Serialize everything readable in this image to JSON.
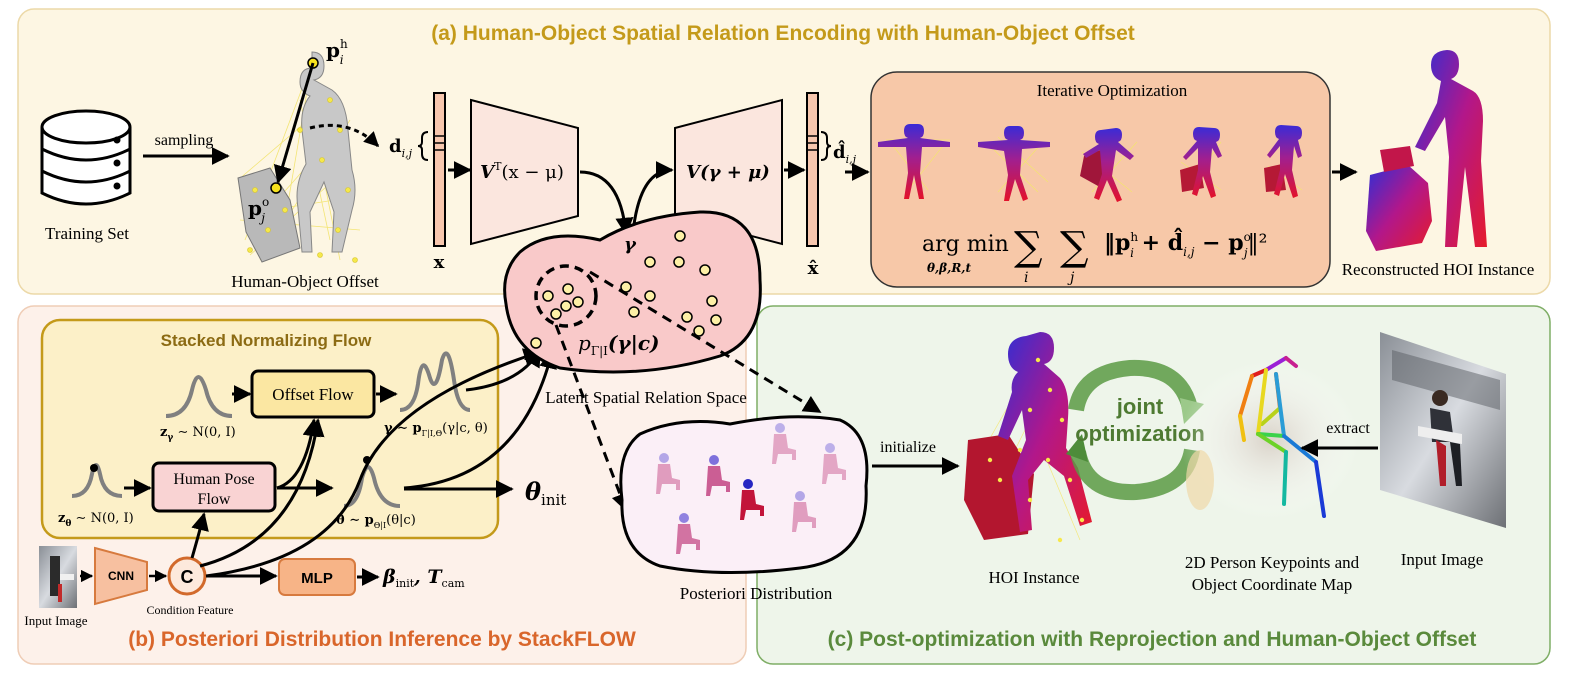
{
  "panel_a": {
    "title": "(a) Human-Object Spatial Relation Encoding with Human-Object Offset",
    "training_set": "Training Set",
    "sampling": "sampling",
    "human_object_offset": "Human-Object Offset",
    "p_h": "p",
    "p_h_sup": "h",
    "p_h_sub": "i",
    "p_o": "p",
    "p_o_sup": "o",
    "p_o_sub": "j",
    "d_ij": "d",
    "d_ij_sub": "i,j",
    "x_label": "x",
    "encoder_label": "V",
    "encoder_sup": "T",
    "encoder_rest": "(x − μ)",
    "decoder_label": "V(γ + μ)",
    "gamma": "γ",
    "dhat_ij": "d̂",
    "dhat_ij_sub": "i,j",
    "xhat_label": "x̂",
    "iterative_optimization": "Iterative  Optimization",
    "argmin": "arg min",
    "argmin_sub": "θ,β,R,t",
    "sum_i": "i",
    "sum_j": "j",
    "objective": "‖p",
    "objective_sup_h": "h",
    "objective_mid": " + d̂",
    "objective_sub_ij": "i,j",
    "objective_minus": " − p",
    "objective_sup_o": "o",
    "objective_sub_j": "j",
    "objective_end": "‖²",
    "objective_sub_i": "i",
    "reconstructed": "Reconstructed HOI Instance"
  },
  "latent": {
    "density": "p",
    "density_sub": "Γ|I",
    "density_arg": "(γ|c)",
    "label": "Latent Spatial Relation Space",
    "posteriori": "Posteriori Distribution"
  },
  "panel_b": {
    "title": "(b) Posteriori Distribution Inference by StackFLOW",
    "stacked_flow": "Stacked Normalizing Flow",
    "offset_flow": "Offset Flow",
    "human_pose_flow_1": "Human Pose",
    "human_pose_flow_2": "Flow",
    "z_gamma": "z",
    "z_gamma_sub": "γ",
    "z_gamma_rest": " ∼ N(0, I)",
    "z_theta": "z",
    "z_theta_sub": "θ",
    "z_theta_rest": " ∼ N(0, I)",
    "gamma_dist": "γ ∼ p",
    "gamma_dist_sub": "Γ|I,Θ",
    "gamma_dist_rest": "(γ|c, θ)",
    "theta_dist": "θ ∼ p",
    "theta_dist_sub": "Θ|I",
    "theta_dist_rest": "(θ|c)",
    "theta_init": "θ",
    "theta_init_sub": "init",
    "cnn": "CNN",
    "c": "C",
    "condition_feature": "Condition Feature",
    "input_image": "Input Image",
    "mlp": "MLP",
    "beta_init": "β",
    "beta_init_sub": "init",
    "t_cam": ", T",
    "t_cam_sub": "cam"
  },
  "panel_c": {
    "title": "(c) Post-optimization with Reprojection and Human-Object Offset",
    "initialize": "initialize",
    "joint_1": "joint",
    "joint_2": "optimization",
    "extract": "extract",
    "hoi_instance": "HOI Instance",
    "keypoints_1": "2D Person Keypoints and",
    "keypoints_2": "Object Coordinate Map",
    "input_image": "Input Image"
  },
  "colors": {
    "panel_a_bg": "#fdf6e3",
    "panel_a_title": "#c49a1a",
    "panel_b_bg": "#fdf1ea",
    "panel_b_title": "#d9662b",
    "panel_c_bg": "#eef5ea",
    "panel_c_title": "#5a8a3c",
    "latent_fill": "#f9c9c9",
    "flow_panel": "#fcf0c8",
    "offset_flow": "#fbe7a2",
    "pose_flow": "#f9d3d3",
    "encoder_fill": "#fbe6de",
    "iter_box": "#f7c8a8"
  }
}
